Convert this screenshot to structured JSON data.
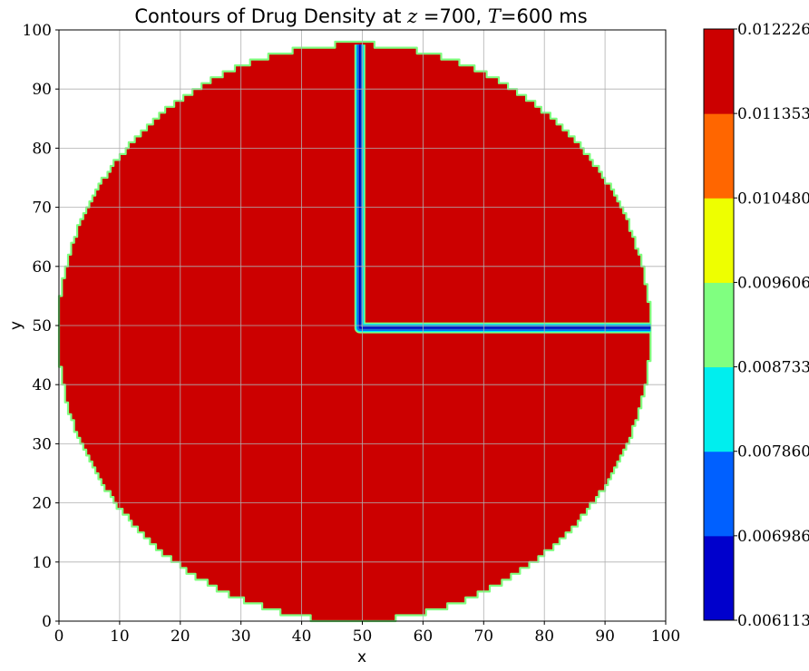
{
  "chart_data": {
    "type": "contour",
    "title": {
      "prefix": "Contours of Drug Density at ",
      "z_symbol": "z",
      "z_value": " =700, ",
      "t_symbol": "T",
      "t_value": "=600 ms"
    },
    "xlabel": "x",
    "ylabel": "y",
    "xlim": [
      0,
      100
    ],
    "ylim": [
      0,
      100
    ],
    "xticks": [
      "0",
      "10",
      "20",
      "30",
      "40",
      "50",
      "60",
      "70",
      "80",
      "90",
      "100"
    ],
    "yticks": [
      "0",
      "10",
      "20",
      "30",
      "40",
      "50",
      "60",
      "70",
      "80",
      "90",
      "100"
    ],
    "grid": true,
    "domain": {
      "shape": "circle",
      "center": [
        48.7,
        48.8
      ],
      "radius": 48.8
    },
    "fill_level_color": "#cc0000",
    "channels": [
      {
        "name": "vertical",
        "x": 49.6,
        "y_from": 50,
        "y_to": 97.5
      },
      {
        "name": "horizontal",
        "y": 49.6,
        "x_from": 50,
        "x_to": 97.5
      }
    ],
    "colorbar": {
      "levels": [
        "0.006113",
        "0.006986",
        "0.007860",
        "0.008733",
        "0.009606",
        "0.010480",
        "0.011353",
        "0.012226"
      ],
      "colors": [
        "#0000cc",
        "#0060ff",
        "#00eeee",
        "#80ff80",
        "#eeff00",
        "#ff6600",
        "#cc0000"
      ]
    }
  }
}
